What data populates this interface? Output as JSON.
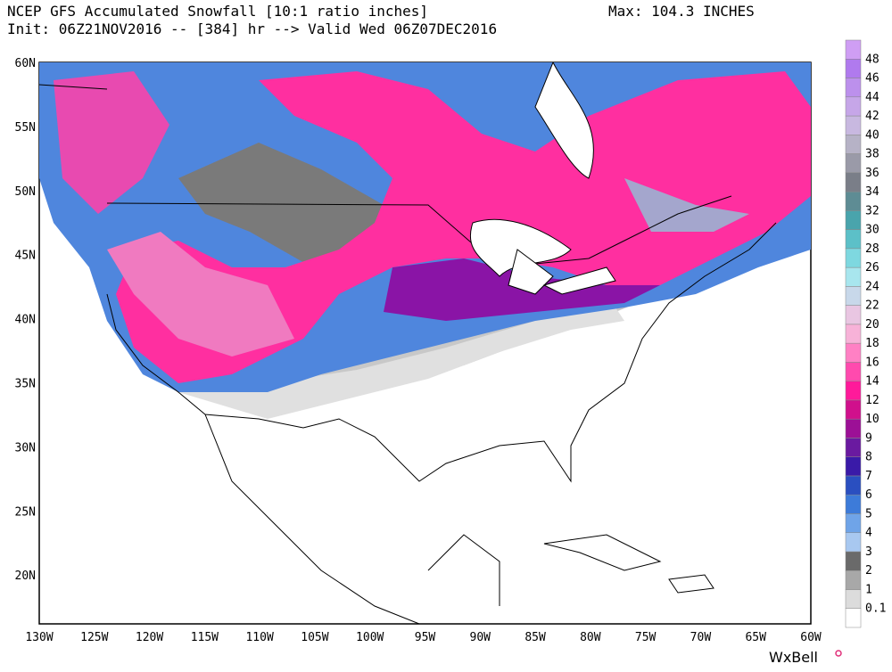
{
  "header": {
    "title": "NCEP GFS Accumulated Snowfall [10:1 ratio inches]",
    "subtitle": "Init: 06Z21NOV2016 -- [384] hr --> Valid Wed 06Z07DEC2016",
    "max": "Max: 104.3 INCHES"
  },
  "map": {
    "lat_labels": [
      "60N",
      "55N",
      "50N",
      "45N",
      "40N",
      "35N",
      "30N",
      "25N",
      "20N"
    ],
    "lon_labels": [
      "130W",
      "125W",
      "120W",
      "115W",
      "110W",
      "105W",
      "100W",
      "95W",
      "90W",
      "85W",
      "80W",
      "75W",
      "70W",
      "65W",
      "60W"
    ]
  },
  "colorbar": {
    "levels": [
      "0.1",
      "1",
      "2",
      "3",
      "4",
      "5",
      "6",
      "7",
      "8",
      "9",
      "10",
      "12",
      "14",
      "16",
      "18",
      "20",
      "22",
      "24",
      "26",
      "28",
      "30",
      "32",
      "34",
      "36",
      "38",
      "40",
      "42",
      "44",
      "46",
      "48"
    ],
    "colors": [
      "#ffffff",
      "#dcdcdc",
      "#a8a8a8",
      "#6a6a6a",
      "#a8c8f0",
      "#6fa4e8",
      "#3d7bd9",
      "#2a4fc0",
      "#3a1aa8",
      "#6a1aa0",
      "#9c1096",
      "#d0108c",
      "#ff1a9a",
      "#ff4aae",
      "#ff80c4",
      "#f7b2d8",
      "#e9c6e2",
      "#c8d8ea",
      "#a8e6ee",
      "#7ed8e0",
      "#5cc0c8",
      "#49a4ac",
      "#5e8c94",
      "#7a7e88",
      "#9a9aa8",
      "#b6b2c6",
      "#c8b8e0",
      "#c6a6e8",
      "#bc90ec",
      "#b07aee",
      "#cf9ef4"
    ]
  },
  "watermark": "WxBell"
}
